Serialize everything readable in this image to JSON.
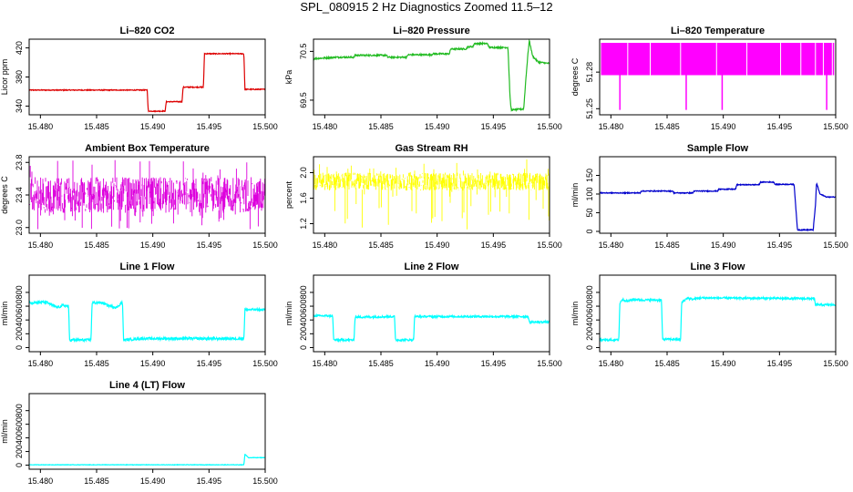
{
  "page_title": "SPL_080915  2 Hz Diagnostics Zoomed 11.5–12",
  "chart_data": [
    {
      "type": "line",
      "title": "Li–820 CO2",
      "ylabel": "Licor ppm",
      "xlabel": "",
      "color": "#dd0000",
      "xlim": [
        15.479,
        15.5
      ],
      "ylim": [
        328,
        432
      ],
      "xticks": [
        15.48,
        15.485,
        15.49,
        15.495,
        15.5
      ],
      "xtick_labels": [
        "15.480",
        "15.485",
        "15.490",
        "15.495",
        "15.500"
      ],
      "yticks": [
        340,
        380,
        420
      ],
      "ytick_labels": [
        "340",
        "380",
        "420"
      ],
      "noise": 0.6,
      "series": [
        {
          "name": "CO2",
          "points": [
            [
              15.479,
              362
            ],
            [
              15.4895,
              362
            ],
            [
              15.4896,
              333
            ],
            [
              15.4911,
              333
            ],
            [
              15.4912,
              346
            ],
            [
              15.4926,
              346
            ],
            [
              15.4927,
              366
            ],
            [
              15.4945,
              366
            ],
            [
              15.4946,
              412
            ],
            [
              15.4981,
              412
            ],
            [
              15.4982,
              363
            ],
            [
              15.5,
              363
            ]
          ]
        }
      ]
    },
    {
      "type": "line",
      "title": "Li–820 Pressure",
      "ylabel": "kPa",
      "xlabel": "",
      "color": "#22bb22",
      "xlim": [
        15.479,
        15.5
      ],
      "ylim": [
        69.2,
        70.75
      ],
      "xticks": [
        15.48,
        15.485,
        15.49,
        15.495,
        15.5
      ],
      "xtick_labels": [
        "15.480",
        "15.485",
        "15.490",
        "15.495",
        "15.500"
      ],
      "yticks": [
        69.5,
        70.5
      ],
      "ytick_labels": [
        "69.5",
        "70.5"
      ],
      "noise": 0.015,
      "series": [
        {
          "name": "Pressure",
          "points": [
            [
              15.479,
              70.35
            ],
            [
              15.481,
              70.38
            ],
            [
              15.4826,
              70.38
            ],
            [
              15.4827,
              70.42
            ],
            [
              15.4855,
              70.42
            ],
            [
              15.4856,
              70.38
            ],
            [
              15.4873,
              70.38
            ],
            [
              15.4874,
              70.43
            ],
            [
              15.4895,
              70.43
            ],
            [
              15.4896,
              70.45
            ],
            [
              15.4911,
              70.45
            ],
            [
              15.4912,
              70.55
            ],
            [
              15.4926,
              70.55
            ],
            [
              15.4927,
              70.59
            ],
            [
              15.4932,
              70.6
            ],
            [
              15.4933,
              70.66
            ],
            [
              15.4945,
              70.66
            ],
            [
              15.4946,
              70.58
            ],
            [
              15.4963,
              70.58
            ],
            [
              15.4965,
              69.5
            ],
            [
              15.4966,
              69.3
            ],
            [
              15.4977,
              69.32
            ],
            [
              15.4979,
              69.95
            ],
            [
              15.4981,
              70.5
            ],
            [
              15.4982,
              70.72
            ],
            [
              15.4985,
              70.4
            ],
            [
              15.499,
              70.28
            ],
            [
              15.5,
              70.25
            ]
          ]
        }
      ]
    },
    {
      "type": "line",
      "title": "Li–820 Temperature",
      "ylabel": "degrees C",
      "xlabel": "",
      "color": "#ff00ff",
      "xlim": [
        15.479,
        15.5
      ],
      "ylim": [
        51.245,
        51.307
      ],
      "xticks": [
        15.48,
        15.485,
        15.49,
        15.495,
        15.5
      ],
      "xtick_labels": [
        "15.480",
        "15.485",
        "15.490",
        "15.495",
        "15.500"
      ],
      "yticks": [
        51.25,
        51.28
      ],
      "ytick_labels": [
        "51.25",
        "51.28"
      ],
      "noise": 0,
      "band": [
        51.2775,
        51.304
      ],
      "band_gaps": [
        15.4815,
        15.4835,
        15.4862,
        15.4894,
        15.4921,
        15.4951,
        15.4969,
        15.4982,
        15.4989,
        15.4997
      ],
      "spikes": [
        15.4808,
        15.4867,
        15.4899,
        15.4992
      ],
      "spike_low": 51.249,
      "series": []
    },
    {
      "type": "line",
      "title": "Ambient Box Temperature",
      "ylabel": "degrees C",
      "xlabel": "",
      "color": "#dd00dd",
      "xlim": [
        15.479,
        15.5
      ],
      "ylim": [
        22.93,
        23.87
      ],
      "xticks": [
        15.48,
        15.485,
        15.49,
        15.495,
        15.5
      ],
      "xtick_labels": [
        "15.480",
        "15.485",
        "15.490",
        "15.495",
        "15.500"
      ],
      "yticks": [
        23.0,
        23.4,
        23.8
      ],
      "ytick_labels": [
        "23.0",
        "23.4",
        "23.8"
      ],
      "noise": 0,
      "band_noise": [
        23.18,
        23.62
      ],
      "series": []
    },
    {
      "type": "line",
      "title": "Gas Stream RH",
      "ylabel": "percent",
      "xlabel": "",
      "color": "#ffff00",
      "xlim": [
        15.479,
        15.5
      ],
      "ylim": [
        1.05,
        2.25
      ],
      "xticks": [
        15.48,
        15.485,
        15.49,
        15.495,
        15.5
      ],
      "xtick_labels": [
        "15.480",
        "15.485",
        "15.490",
        "15.495",
        "15.500"
      ],
      "yticks": [
        1.2,
        1.6,
        2.0
      ],
      "ytick_labels": [
        "1.2",
        "1.6",
        "2.0"
      ],
      "noise": 0,
      "band_noise": [
        1.72,
        2.0
      ],
      "series": []
    },
    {
      "type": "line",
      "title": "Sample Flow",
      "ylabel": "ml/min",
      "xlabel": "",
      "color": "#0000cc",
      "xlim": [
        15.479,
        15.5
      ],
      "ylim": [
        -5,
        200
      ],
      "xticks": [
        15.48,
        15.485,
        15.49,
        15.495,
        15.5
      ],
      "xtick_labels": [
        "15.480",
        "15.485",
        "15.490",
        "15.495",
        "15.500"
      ],
      "yticks": [
        0,
        50,
        100,
        150
      ],
      "ytick_labels": [
        "0",
        "50",
        "100",
        "150"
      ],
      "noise": 1.2,
      "series": [
        {
          "name": "Sample",
          "points": [
            [
              15.479,
              103
            ],
            [
              15.4826,
              103
            ],
            [
              15.4827,
              108
            ],
            [
              15.4855,
              108
            ],
            [
              15.4856,
              103
            ],
            [
              15.4873,
              103
            ],
            [
              15.4874,
              108
            ],
            [
              15.4895,
              108
            ],
            [
              15.4896,
              113
            ],
            [
              15.4911,
              113
            ],
            [
              15.4912,
              125
            ],
            [
              15.4932,
              125
            ],
            [
              15.4933,
              132
            ],
            [
              15.4945,
              132
            ],
            [
              15.4946,
              126
            ],
            [
              15.4963,
              126
            ],
            [
              15.4966,
              4
            ],
            [
              15.498,
              4
            ],
            [
              15.4982,
              70
            ],
            [
              15.4983,
              130
            ],
            [
              15.4986,
              100
            ],
            [
              15.4992,
              92
            ],
            [
              15.5,
              92
            ]
          ]
        }
      ]
    },
    {
      "type": "line",
      "title": "Line 1 Flow",
      "ylabel": "ml/min",
      "xlabel": "",
      "color": "#00ffff",
      "xlim": [
        15.479,
        15.5
      ],
      "ylim": [
        -60,
        1050
      ],
      "xticks": [
        15.48,
        15.485,
        15.49,
        15.495,
        15.5
      ],
      "xtick_labels": [
        "15.480",
        "15.485",
        "15.490",
        "15.495",
        "15.500"
      ],
      "yticks": [
        0,
        200,
        400,
        600,
        800
      ],
      "ytick_labels": [
        "0",
        "200",
        "400",
        "600",
        "800"
      ],
      "noise": 18,
      "series": [
        {
          "name": "Line1",
          "points": [
            [
              15.479,
              650
            ],
            [
              15.4805,
              660
            ],
            [
              15.481,
              620
            ],
            [
              15.4815,
              580
            ],
            [
              15.482,
              610
            ],
            [
              15.4825,
              600
            ],
            [
              15.4826,
              110
            ],
            [
              15.4845,
              110
            ],
            [
              15.4846,
              650
            ],
            [
              15.4855,
              650
            ],
            [
              15.486,
              610
            ],
            [
              15.4868,
              580
            ],
            [
              15.4872,
              650
            ],
            [
              15.4873,
              650
            ],
            [
              15.4874,
              110
            ],
            [
              15.489,
              130
            ],
            [
              15.4981,
              130
            ],
            [
              15.4982,
              550
            ],
            [
              15.5,
              550
            ]
          ]
        }
      ]
    },
    {
      "type": "line",
      "title": "Line 2 Flow",
      "ylabel": "ml/min",
      "xlabel": "",
      "color": "#00ffff",
      "xlim": [
        15.479,
        15.5
      ],
      "ylim": [
        -60,
        1050
      ],
      "xticks": [
        15.48,
        15.485,
        15.49,
        15.495,
        15.5
      ],
      "xtick_labels": [
        "15.480",
        "15.485",
        "15.490",
        "15.495",
        "15.500"
      ],
      "yticks": [
        0,
        200,
        400,
        600,
        800
      ],
      "ytick_labels": [
        "0",
        "200",
        "400",
        "600",
        "800"
      ],
      "noise": 14,
      "series": [
        {
          "name": "Line2",
          "points": [
            [
              15.479,
              460
            ],
            [
              15.4807,
              460
            ],
            [
              15.4808,
              110
            ],
            [
              15.4826,
              110
            ],
            [
              15.4827,
              440
            ],
            [
              15.4862,
              450
            ],
            [
              15.4863,
              110
            ],
            [
              15.4879,
              110
            ],
            [
              15.488,
              450
            ],
            [
              15.4981,
              450
            ],
            [
              15.4982,
              370
            ],
            [
              15.5,
              370
            ]
          ]
        }
      ]
    },
    {
      "type": "line",
      "title": "Line 3 Flow",
      "ylabel": "ml/min",
      "xlabel": "",
      "color": "#00ffff",
      "xlim": [
        15.479,
        15.5
      ],
      "ylim": [
        -60,
        1050
      ],
      "xticks": [
        15.48,
        15.485,
        15.49,
        15.495,
        15.5
      ],
      "xtick_labels": [
        "15.480",
        "15.485",
        "15.490",
        "15.495",
        "15.500"
      ],
      "yticks": [
        0,
        200,
        400,
        600,
        800
      ],
      "ytick_labels": [
        "0",
        "200",
        "400",
        "600",
        "800"
      ],
      "noise": 14,
      "series": [
        {
          "name": "Line3",
          "points": [
            [
              15.479,
              110
            ],
            [
              15.4807,
              110
            ],
            [
              15.4808,
              640
            ],
            [
              15.481,
              700
            ],
            [
              15.4815,
              670
            ],
            [
              15.482,
              700
            ],
            [
              15.4826,
              690
            ],
            [
              15.4827,
              690
            ],
            [
              15.4845,
              690
            ],
            [
              15.4846,
              120
            ],
            [
              15.4862,
              120
            ],
            [
              15.4863,
              650
            ],
            [
              15.4868,
              720
            ],
            [
              15.4873,
              700
            ],
            [
              15.488,
              720
            ],
            [
              15.4981,
              710
            ],
            [
              15.4982,
              620
            ],
            [
              15.5,
              620
            ]
          ]
        }
      ]
    },
    {
      "type": "line",
      "title": "Line 4 (LT) Flow",
      "ylabel": "ml/min",
      "xlabel": "",
      "color": "#00ffff",
      "xlim": [
        15.479,
        15.5
      ],
      "ylim": [
        -60,
        1050
      ],
      "xticks": [
        15.48,
        15.485,
        15.49,
        15.495,
        15.5
      ],
      "xtick_labels": [
        "15.480",
        "15.485",
        "15.490",
        "15.495",
        "15.500"
      ],
      "yticks": [
        0,
        200,
        400,
        600,
        800
      ],
      "ytick_labels": [
        "0",
        "200",
        "400",
        "600",
        "800"
      ],
      "noise": 3,
      "series": [
        {
          "name": "Line4",
          "points": [
            [
              15.479,
              5
            ],
            [
              15.4981,
              5
            ],
            [
              15.4982,
              160
            ],
            [
              15.4985,
              110
            ],
            [
              15.5,
              110
            ]
          ]
        }
      ]
    }
  ]
}
